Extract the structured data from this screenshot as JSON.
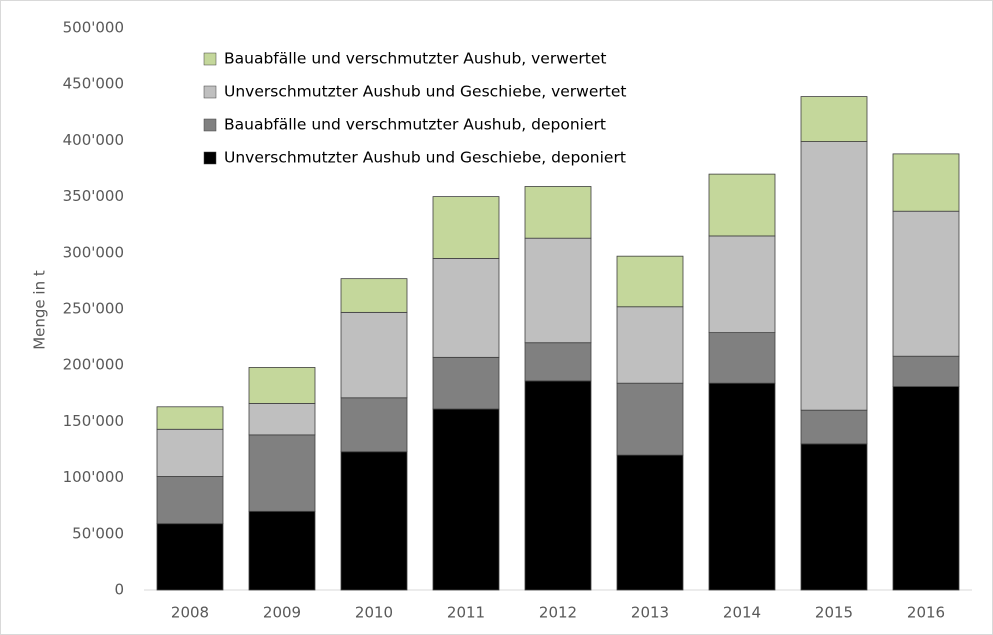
{
  "chart_data": {
    "type": "stacked_bar",
    "y_label": "Menge in t",
    "categories": [
      "2008",
      "2009",
      "2010",
      "2011",
      "2012",
      "2013",
      "2014",
      "2015",
      "2016"
    ],
    "series": [
      {
        "name": "Unverschmutzter Aushub und Geschiebe, deponiert",
        "color": "#000000",
        "values": [
          59000,
          70000,
          123000,
          161000,
          186000,
          120000,
          184000,
          130000,
          181000
        ]
      },
      {
        "name": "Bauabfälle und verschmutzter Aushub, deponiert",
        "color": "#808080",
        "values": [
          42000,
          68000,
          48000,
          46000,
          34000,
          64000,
          45000,
          30000,
          27000
        ]
      },
      {
        "name": "Unverschmutzter Aushub und Geschiebe, verwertet",
        "color": "#bfbfbf",
        "values": [
          42000,
          28000,
          76000,
          88000,
          93000,
          68000,
          86000,
          239000,
          129000
        ]
      },
      {
        "name": "Bauabfälle und verschmutzter Aushub, verwertet",
        "color": "#c4d79b",
        "values": [
          20000,
          32000,
          30000,
          55000,
          46000,
          45000,
          55000,
          40000,
          51000
        ]
      }
    ],
    "ylim": [
      0,
      500000
    ],
    "yticks": [
      0,
      {
        "value": 50000,
        "label": "50'000"
      },
      {
        "value": 100000,
        "label": "100'000"
      },
      {
        "value": 150000,
        "label": "150'000"
      },
      {
        "value": 200000,
        "label": "200'000"
      },
      {
        "value": 250000,
        "label": "250'000"
      },
      {
        "value": 300000,
        "label": "300'000"
      },
      {
        "value": 350000,
        "label": "350'000"
      },
      {
        "value": 400000,
        "label": "400'000"
      },
      {
        "value": 450000,
        "label": "450'000"
      },
      {
        "value": 500000,
        "label": "500'000"
      }
    ],
    "legend": "top-left"
  }
}
